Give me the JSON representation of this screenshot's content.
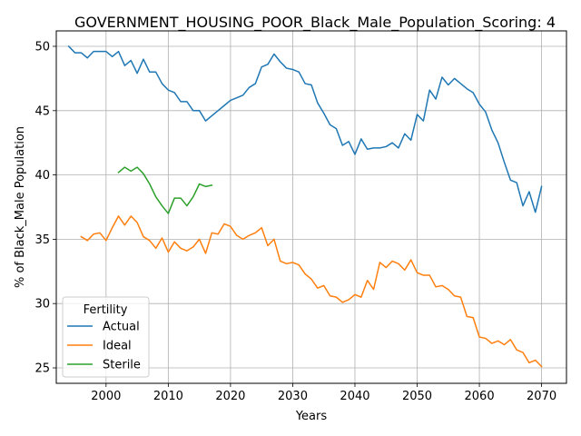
{
  "chart_data": {
    "type": "line",
    "title": "GOVERNMENT_HOUSING_POOR_Black_Male_Population_Scoring: 4",
    "xlabel": "Years",
    "ylabel": "% of Black_Male Population",
    "xlim": [
      1992,
      2074
    ],
    "ylim": [
      23.8,
      51.2
    ],
    "xticks": [
      2000,
      2010,
      2020,
      2030,
      2040,
      2050,
      2060,
      2070
    ],
    "yticks": [
      25,
      30,
      35,
      40,
      45,
      50
    ],
    "grid": true,
    "legend": {
      "title": "Fertility",
      "placement": "bottom-left"
    },
    "series": [
      {
        "name": "Actual",
        "color": "#1f77b4",
        "x": [
          1994,
          1995,
          1996,
          1997,
          1998,
          1999,
          2000,
          2001,
          2002,
          2003,
          2004,
          2005,
          2006,
          2007,
          2008,
          2009,
          2010,
          2011,
          2012,
          2013,
          2014,
          2015,
          2016,
          2017,
          2018,
          2019,
          2020,
          2021,
          2022,
          2023,
          2024,
          2025,
          2026,
          2027,
          2028,
          2029,
          2030,
          2031,
          2032,
          2033,
          2034,
          2035,
          2036,
          2037,
          2038,
          2039,
          2040,
          2041,
          2042,
          2043,
          2044,
          2045,
          2046,
          2047,
          2048,
          2049,
          2050,
          2051,
          2052,
          2053,
          2054,
          2055,
          2056,
          2057,
          2058,
          2059,
          2060,
          2061,
          2062,
          2063,
          2064,
          2065,
          2066,
          2067,
          2068,
          2069,
          2070
        ],
        "y": [
          50.0,
          49.5,
          49.5,
          49.1,
          49.6,
          49.6,
          49.6,
          49.2,
          49.6,
          48.5,
          48.9,
          47.9,
          49.0,
          48.0,
          48.0,
          47.1,
          46.6,
          46.4,
          45.7,
          45.7,
          45.0,
          45.0,
          44.2,
          44.6,
          45.0,
          45.4,
          45.8,
          46.0,
          46.2,
          46.8,
          47.1,
          48.4,
          48.6,
          49.4,
          48.8,
          48.3,
          48.2,
          48.0,
          47.1,
          47.0,
          45.6,
          44.8,
          43.9,
          43.6,
          42.3,
          42.6,
          41.6,
          42.8,
          42.0,
          42.1,
          42.1,
          42.2,
          42.5,
          42.1,
          43.2,
          42.7,
          44.7,
          44.2,
          46.6,
          45.9,
          47.6,
          47.0,
          47.5,
          47.1,
          46.7,
          46.4,
          45.5,
          44.9,
          43.5,
          42.5,
          41.0,
          39.6,
          39.4,
          37.6,
          38.7,
          37.1,
          39.1
        ]
      },
      {
        "name": "Ideal",
        "color": "#ff7f0e",
        "x": [
          1996,
          1997,
          1998,
          1999,
          2000,
          2001,
          2002,
          2003,
          2004,
          2005,
          2006,
          2007,
          2008,
          2009,
          2010,
          2011,
          2012,
          2013,
          2014,
          2015,
          2016,
          2017,
          2018,
          2019,
          2020,
          2021,
          2022,
          2023,
          2024,
          2025,
          2026,
          2027,
          2028,
          2029,
          2030,
          2031,
          2032,
          2033,
          2034,
          2035,
          2036,
          2037,
          2038,
          2039,
          2040,
          2041,
          2042,
          2043,
          2044,
          2045,
          2046,
          2047,
          2048,
          2049,
          2050,
          2051,
          2052,
          2053,
          2054,
          2055,
          2056,
          2057,
          2058,
          2059,
          2060,
          2061,
          2062,
          2063,
          2064,
          2065,
          2066,
          2067,
          2068,
          2069,
          2070
        ],
        "y": [
          35.2,
          34.9,
          35.4,
          35.5,
          34.9,
          35.9,
          36.8,
          36.1,
          36.8,
          36.3,
          35.2,
          34.9,
          34.3,
          35.1,
          34.0,
          34.8,
          34.3,
          34.1,
          34.4,
          35.0,
          33.9,
          35.5,
          35.4,
          36.2,
          36.0,
          35.3,
          35.0,
          35.3,
          35.5,
          35.9,
          34.5,
          35.0,
          33.3,
          33.1,
          33.2,
          33.0,
          32.3,
          31.9,
          31.2,
          31.4,
          30.6,
          30.5,
          30.1,
          30.3,
          30.7,
          30.5,
          31.8,
          31.1,
          33.2,
          32.8,
          33.3,
          33.1,
          32.6,
          33.4,
          32.4,
          32.2,
          32.2,
          31.3,
          31.4,
          31.1,
          30.6,
          30.5,
          29.0,
          28.9,
          27.4,
          27.3,
          26.9,
          27.1,
          26.8,
          27.2,
          26.4,
          26.2,
          25.4,
          25.6,
          25.1
        ]
      },
      {
        "name": "Sterile",
        "color": "#2ca02c",
        "x": [
          2002,
          2003,
          2004,
          2005,
          2006,
          2007,
          2008,
          2009,
          2010,
          2011,
          2012,
          2013,
          2014,
          2015,
          2016,
          2017
        ],
        "y": [
          40.2,
          40.6,
          40.3,
          40.6,
          40.1,
          39.3,
          38.3,
          37.6,
          37.0,
          38.2,
          38.2,
          37.6,
          38.3,
          39.3,
          39.1,
          39.2
        ]
      }
    ]
  }
}
